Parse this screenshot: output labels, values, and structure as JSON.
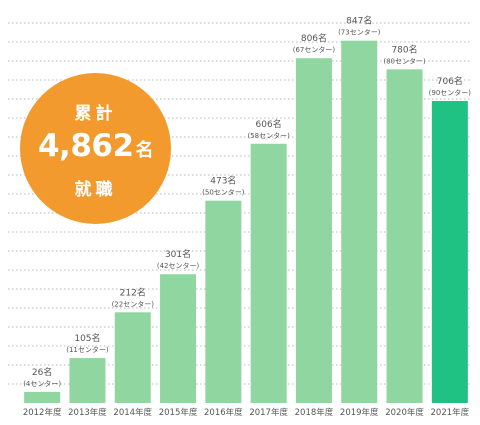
{
  "badge": {
    "top_label": "累計",
    "total": "4,862",
    "unit": "名",
    "bottom_label": "就職"
  },
  "chart_data": {
    "type": "bar",
    "categories": [
      "2012年度",
      "2013年度",
      "2014年度",
      "2015年度",
      "2016年度",
      "2017年度",
      "2018年度",
      "2019年度",
      "2020年度",
      "2021年度"
    ],
    "values": [
      26,
      105,
      212,
      301,
      473,
      606,
      806,
      847,
      780,
      706
    ],
    "value_labels": [
      "26名",
      "105名",
      "212名",
      "301名",
      "473名",
      "606名",
      "806名",
      "847名",
      "780名",
      "706名"
    ],
    "sub_labels": [
      "(4センター)",
      "(11センター)",
      "(22センター)",
      "(42センター)",
      "(50センター)",
      "(58センター)",
      "(67センター)",
      "(73センター)",
      "(80センター)",
      "(90センター)"
    ],
    "ylim": [
      0,
      900
    ],
    "grid": true,
    "colors": {
      "bar": "#90d6a0",
      "highlight": "#1fc283",
      "grid": "#b8b8b8",
      "text": "#555555",
      "badge": "#f29a2e"
    },
    "highlight_index": 9
  }
}
